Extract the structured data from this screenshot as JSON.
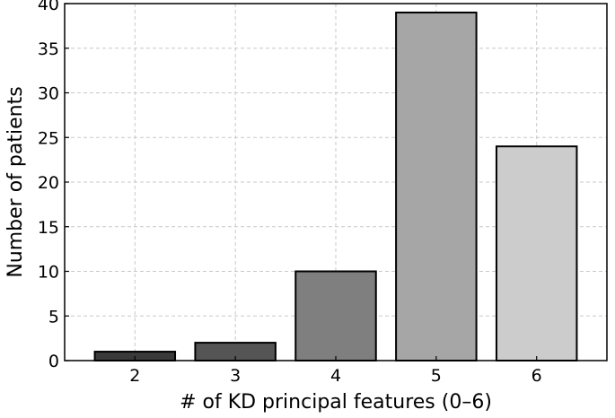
{
  "chart_data": {
    "type": "bar",
    "title": "",
    "xlabel": "# of KD principal features (0–6)",
    "ylabel": "Number of patients",
    "categories": [
      "2",
      "3",
      "4",
      "5",
      "6"
    ],
    "values": [
      1,
      2,
      10,
      39,
      24
    ],
    "bar_colors": [
      "#3a3a3a",
      "#555555",
      "#7f7f7f",
      "#a6a6a6",
      "#cccccc"
    ],
    "ylim": [
      0,
      40
    ],
    "yticks": [
      "0",
      "5",
      "10",
      "15",
      "20",
      "25",
      "30",
      "35",
      "40"
    ],
    "grid": true,
    "legend": "none"
  }
}
